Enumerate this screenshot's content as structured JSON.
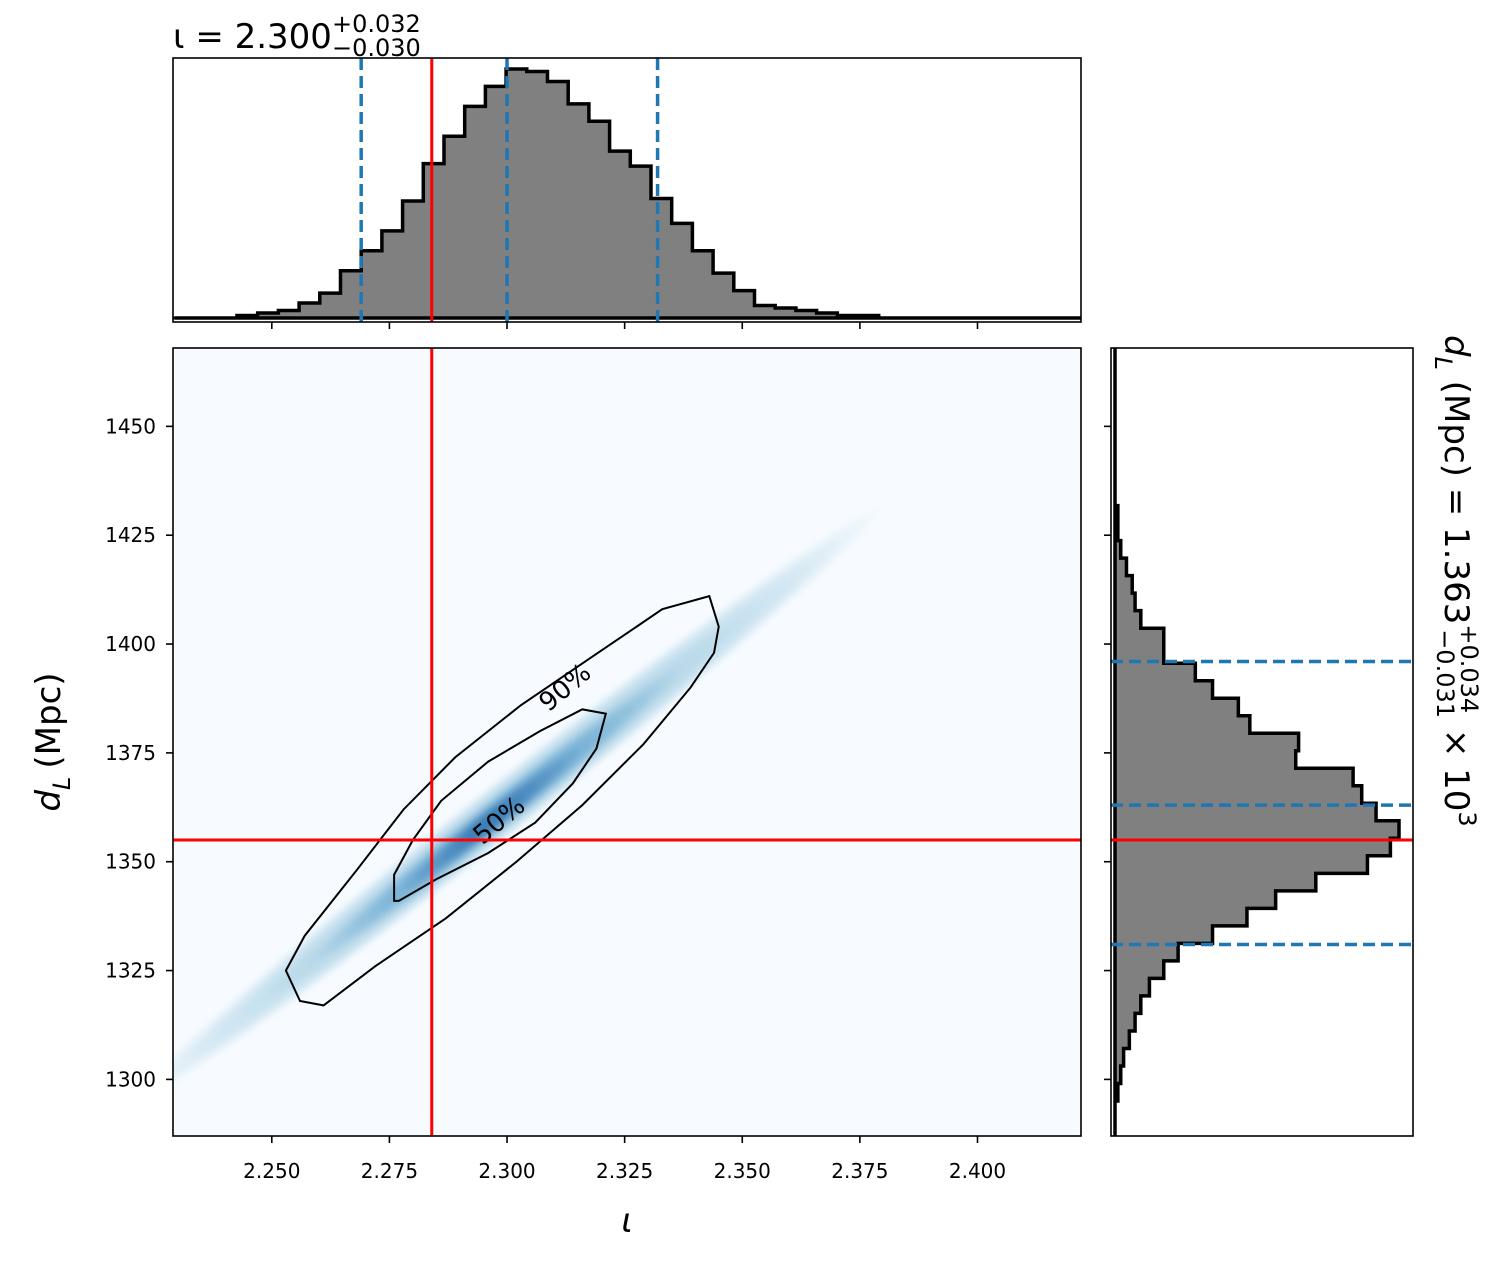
{
  "chart_data": {
    "type": "corner",
    "parameters": [
      {
        "symbol": "ι",
        "unit": ""
      },
      {
        "symbol": "d",
        "subscript": "L",
        "unit": "(Mpc)"
      }
    ],
    "iota": {
      "title": {
        "prefix": "ι = 2.300",
        "sup": "+0.032",
        "sub": "−0.030"
      },
      "xlabel": "ι",
      "xlim": [
        2.229,
        2.422
      ],
      "ticks": [
        2.25,
        2.275,
        2.3,
        2.325,
        2.35,
        2.375,
        2.4
      ],
      "tick_labels": [
        "2.250",
        "2.275",
        "2.300",
        "2.325",
        "2.350",
        "2.375",
        "2.400"
      ],
      "truth": 2.284,
      "quantiles": [
        2.269,
        2.3,
        2.332
      ],
      "histogram": {
        "edges": [
          2.2294,
          2.2338,
          2.2382,
          2.2426,
          2.247,
          2.2514,
          2.2558,
          2.2602,
          2.2646,
          2.269,
          2.2734,
          2.2778,
          2.2822,
          2.2866,
          2.291,
          2.2954,
          2.2998,
          2.3042,
          2.3086,
          2.313,
          2.3174,
          2.3218,
          2.3262,
          2.3306,
          2.335,
          2.3394,
          2.3438,
          2.3482,
          2.3526,
          2.357,
          2.3614,
          2.3658,
          2.3702,
          2.3746,
          2.379,
          2.3834,
          2.3878,
          2.3922,
          2.3966,
          2.401,
          2.4054,
          2.4098,
          2.4142,
          2.4186,
          2.423
        ],
        "counts": [
          0,
          0,
          0,
          1,
          2,
          3,
          6,
          10,
          19,
          27,
          35,
          47,
          62,
          73,
          85,
          93,
          100,
          99,
          95,
          86,
          79,
          67,
          61,
          48,
          38,
          27,
          18,
          11,
          5,
          4,
          3,
          2,
          1,
          1,
          0,
          0,
          0,
          0,
          0,
          0,
          0,
          0,
          0,
          0
        ]
      }
    },
    "dL": {
      "ylabel_symbol": "d",
      "ylabel_sub": "L",
      "ylabel_unit": "(Mpc)",
      "ylim": [
        1287,
        1468
      ],
      "ticks": [
        1300,
        1325,
        1350,
        1375,
        1400,
        1425,
        1450
      ],
      "tick_labels": [
        "1300",
        "1325",
        "1350",
        "1375",
        "1400",
        "1425",
        "1450"
      ],
      "title": {
        "prefix": "d",
        "sub_letter": "L",
        "mid": " (Mpc) = 1.363",
        "sup": "+0.034",
        "sub": "−0.031",
        "suffix": " × 10",
        "exp": "3"
      },
      "truth": 1355,
      "quantiles": [
        1331,
        1363,
        1396
      ],
      "histogram": {
        "edges": [
          1287,
          1291.02,
          1295.04,
          1299.07,
          1303.09,
          1307.11,
          1311.13,
          1315.16,
          1319.18,
          1323.2,
          1327.22,
          1331.24,
          1335.27,
          1339.29,
          1343.31,
          1347.33,
          1351.36,
          1355.38,
          1359.4,
          1363.42,
          1367.44,
          1371.47,
          1375.49,
          1379.51,
          1383.53,
          1387.56,
          1391.58,
          1395.6,
          1399.62,
          1403.64,
          1407.67,
          1411.69,
          1415.71,
          1419.73,
          1423.76,
          1427.78,
          1431.8,
          1435.82,
          1439.84,
          1443.87,
          1447.89,
          1451.91,
          1455.93,
          1459.96,
          1463.98,
          1468
        ],
        "counts": [
          0,
          0,
          1,
          2,
          3,
          5,
          7,
          9,
          12,
          17,
          22,
          34,
          46,
          56,
          70,
          88,
          96,
          99,
          91,
          86,
          83,
          63,
          64,
          47,
          43,
          34,
          28,
          17,
          17,
          9,
          7,
          6,
          4,
          2,
          1,
          1,
          0,
          0,
          0,
          0,
          0,
          0,
          0,
          0,
          0
        ]
      }
    },
    "joint": {
      "truth": {
        "x": 2.284,
        "y": 1355
      },
      "contours": [
        {
          "level": "50%",
          "label": "50%",
          "points": [
            [
              2.277,
              1341
            ],
            [
              2.285,
              1346
            ],
            [
              2.296,
              1352
            ],
            [
              2.306,
              1359
            ],
            [
              2.314,
              1368
            ],
            [
              2.319,
              1376
            ],
            [
              2.321,
              1384
            ],
            [
              2.316,
              1385
            ],
            [
              2.307,
              1380
            ],
            [
              2.296,
              1373
            ],
            [
              2.286,
              1364
            ],
            [
              2.28,
              1355
            ],
            [
              2.276,
              1347
            ],
            [
              2.276,
              1341
            ]
          ]
        },
        {
          "level": "90%",
          "label": "90%",
          "points": [
            [
              2.261,
              1317
            ],
            [
              2.272,
              1326
            ],
            [
              2.287,
              1337
            ],
            [
              2.302,
              1350
            ],
            [
              2.316,
              1363
            ],
            [
              2.329,
              1377
            ],
            [
              2.339,
              1390
            ],
            [
              2.344,
              1398
            ],
            [
              2.345,
              1404
            ],
            [
              2.343,
              1411
            ],
            [
              2.333,
              1408
            ],
            [
              2.318,
              1397
            ],
            [
              2.303,
              1386
            ],
            [
              2.289,
              1374
            ],
            [
              2.278,
              1362
            ],
            [
              2.268,
              1348
            ],
            [
              2.257,
              1333
            ],
            [
              2.253,
              1325
            ],
            [
              2.256,
              1318
            ],
            [
              2.261,
              1317
            ]
          ]
        }
      ],
      "colormap": {
        "low": "#f7fbff",
        "mid": "#6baed6",
        "high": "#08306b"
      }
    },
    "colors": {
      "hist_fill": "#808080",
      "hist_edge": "#000000",
      "quantile": "#1f77b4",
      "truth": "#ff0000",
      "contour": "#000000"
    }
  }
}
